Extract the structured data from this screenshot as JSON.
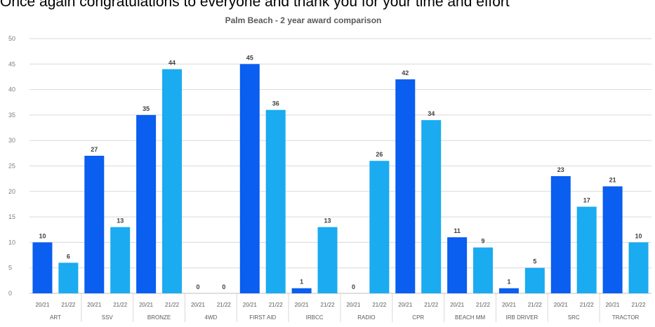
{
  "page": {
    "top_text": "Once again congratulations to everyone and thank you for your time and effort"
  },
  "chart_data": {
    "type": "bar",
    "title": "Palm Beach - 2 year award comparison",
    "xlabel": "",
    "ylabel": "",
    "ylim": [
      0,
      50
    ],
    "yticks": [
      0,
      5,
      10,
      15,
      20,
      25,
      30,
      35,
      40,
      45,
      50
    ],
    "grid": true,
    "legend": "none",
    "groups": [
      "ART",
      "SSV",
      "BRONZE",
      "4WD",
      "FIRST AID",
      "IRBCC",
      "RADIO",
      "CPR",
      "BEACH MM",
      "IRB DRIVER",
      "SRC",
      "TRACTOR"
    ],
    "series": [
      {
        "sublabel": "20/21",
        "color": "#0a5ef0",
        "values": [
          10,
          27,
          35,
          0,
          45,
          1,
          0,
          42,
          11,
          1,
          23,
          21
        ]
      },
      {
        "sublabel": "21/22",
        "color": "#1aabf0",
        "values": [
          6,
          13,
          44,
          0,
          36,
          13,
          26,
          34,
          9,
          5,
          17,
          10
        ]
      }
    ]
  }
}
